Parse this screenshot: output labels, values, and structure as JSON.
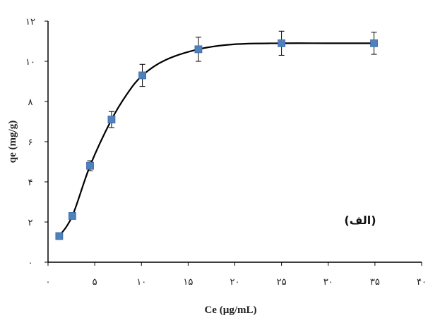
{
  "chart_data": {
    "type": "scatter",
    "xlabel": "Ce (µg/mL)",
    "ylabel": "qe (mg/g)",
    "panel_label": "(الف)",
    "xlim": [
      0,
      40
    ],
    "ylim": [
      0,
      12
    ],
    "x_ticks": [
      0,
      5,
      10,
      15,
      20,
      25,
      30,
      35,
      40
    ],
    "x_tick_labels": [
      "۰",
      "۵",
      "۱۰",
      "۱۵",
      "۲۰",
      "۲۵",
      "۳۰",
      "۳۵",
      "۴۰"
    ],
    "y_ticks": [
      0,
      2,
      4,
      6,
      8,
      10,
      12
    ],
    "y_tick_labels": [
      "۰",
      "۲",
      "۴",
      "۶",
      "۸",
      "۱۰",
      "۱۲"
    ],
    "grid": false,
    "marker_color": "#4f81bd",
    "curve_color": "#000000",
    "series": [
      {
        "x": [
          1.2,
          2.6,
          4.5,
          6.8,
          10.1,
          16.1,
          25.0,
          34.9
        ],
        "y": [
          1.3,
          2.3,
          4.8,
          7.1,
          9.3,
          10.6,
          10.9,
          10.9
        ],
        "error": [
          0.15,
          0.15,
          0.25,
          0.4,
          0.55,
          0.6,
          0.6,
          0.55
        ]
      }
    ],
    "fit_curve": {
      "x": [
        1.2,
        2.6,
        4.5,
        6.8,
        8.5,
        10.1,
        12.5,
        16.1,
        20.0,
        25.0,
        30.0,
        34.9
      ],
      "y": [
        1.3,
        2.3,
        4.8,
        7.1,
        8.4,
        9.3,
        10.05,
        10.6,
        10.85,
        10.9,
        10.9,
        10.9
      ]
    }
  }
}
